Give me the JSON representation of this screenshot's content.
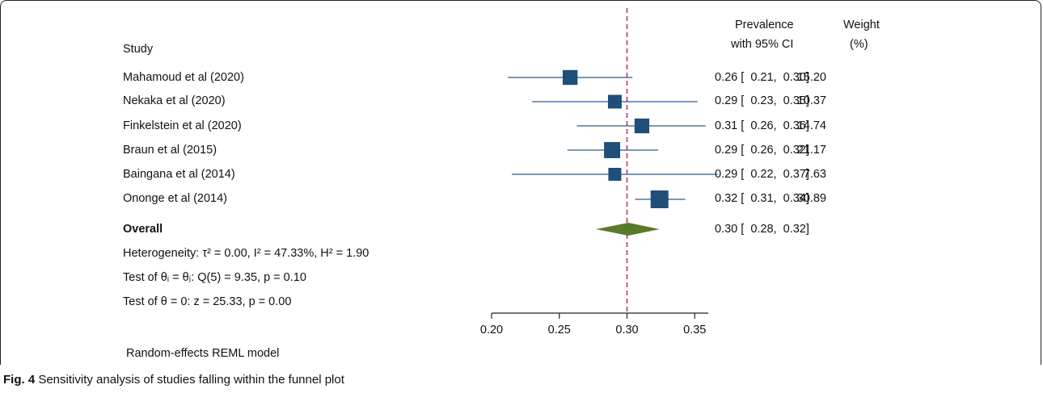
{
  "chart_data": {
    "type": "forest",
    "columns": {
      "study": "Study",
      "estimate": [
        "Prevalence",
        "with 95% CI"
      ],
      "weight": [
        "Weight",
        "(%)"
      ]
    },
    "studies": [
      {
        "name": "Mahamoud et al (2020)",
        "est": 0.258,
        "lo": 0.212,
        "hi": 0.304,
        "label": "0.26 [  0.21,  0.30]",
        "weight": 15.2,
        "weight_label": "15.20"
      },
      {
        "name": "Nekaka et al (2020)",
        "est": 0.291,
        "lo": 0.23,
        "hi": 0.352,
        "label": "0.29 [  0.23,  0.35]",
        "weight": 10.37,
        "weight_label": "10.37"
      },
      {
        "name": "Finkelstein et al (2020)",
        "est": 0.311,
        "lo": 0.263,
        "hi": 0.358,
        "label": "0.31 [  0.26,  0.36]",
        "weight": 14.74,
        "weight_label": "14.74"
      },
      {
        "name": "Braun et al (2015)",
        "est": 0.289,
        "lo": 0.256,
        "hi": 0.323,
        "label": "0.29 [  0.26,  0.32]",
        "weight": 21.17,
        "weight_label": "21.17"
      },
      {
        "name": "Baingana et al (2014)",
        "est": 0.291,
        "lo": 0.215,
        "hi": 0.367,
        "label": "0.29 [  0.22,  0.37]",
        "weight": 7.63,
        "weight_label": "7.63"
      },
      {
        "name": "Ononge et al (2014)",
        "est": 0.324,
        "lo": 0.306,
        "hi": 0.343,
        "label": "0.32 [  0.31,  0.34]",
        "weight": 30.89,
        "weight_label": "30.89"
      }
    ],
    "overall": {
      "name": "Overall",
      "est": 0.301,
      "lo": 0.277,
      "hi": 0.324,
      "label": "0.30 [  0.28,  0.32]"
    },
    "notes": {
      "heterogeneity": "Heterogeneity: τ² = 0.00, I² = 47.33%, H² = 1.90",
      "test_equal": "Test of θᵢ = θⱼ: Q(5) = 9.35, p = 0.10",
      "test_zero": "Test of θ = 0: z = 25.33, p = 0.00"
    },
    "x_ticks": [
      "0.20",
      "0.25",
      "0.30",
      "0.35"
    ],
    "xlim": [
      0.2,
      0.36
    ],
    "reference_line": 0.3,
    "model_label": "Random-effects REML model",
    "colors": {
      "marker": "#1f4e79",
      "ci": "#2b5a8c",
      "diamond": "#5a7a2a",
      "reference": "#c0305a"
    }
  },
  "caption": {
    "label": "Fig. 4",
    "text": " Sensitivity analysis of studies falling within the funnel plot"
  }
}
